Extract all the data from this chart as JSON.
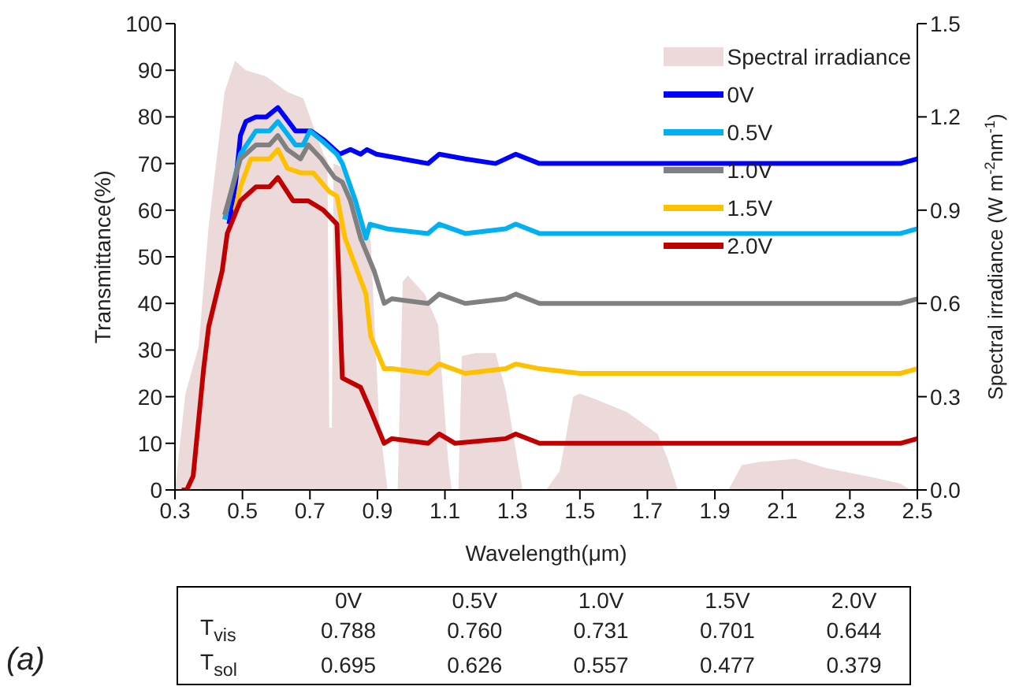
{
  "chart_data": {
    "type": "line",
    "xlabel": "Wavelength(μm)",
    "ylabel": "Transmittance(%)",
    "y2label": "Spectral irradiance (W m$^{-2}$nm$^{-1}$)",
    "xlim": [
      0.3,
      2.5
    ],
    "xticks": [
      0.3,
      0.5,
      0.7,
      0.9,
      1.1,
      1.3,
      1.5,
      1.7,
      1.9,
      2.1,
      2.3,
      2.5
    ],
    "ylim": [
      0,
      100
    ],
    "yticks": [
      0,
      10,
      20,
      30,
      40,
      50,
      60,
      70,
      80,
      90,
      100
    ],
    "y2lim": [
      0,
      1.5
    ],
    "y2ticks": [
      {
        "value": 0,
        "label": "0.0"
      },
      {
        "value": 0.3,
        "label": "0.3"
      },
      {
        "value": 0.6,
        "label": "0.6"
      },
      {
        "value": 0.9,
        "label": "0.9"
      },
      {
        "value": 1.2,
        "label": "1.2"
      },
      {
        "value": 1.5,
        "label": "1.5"
      }
    ],
    "grid": false,
    "legend": "top right",
    "marker": "none",
    "line_style": "solid",
    "series": [
      {
        "name": "Spectral irradiance",
        "type": "area",
        "axis": "y2",
        "color": "#ecd9d9",
        "x": [
          0.3,
          0.331,
          0.37,
          0.4,
          0.447,
          0.478,
          0.51,
          0.57,
          0.633,
          0.68,
          0.74,
          0.752,
          0.757,
          0.765,
          0.77,
          0.79,
          0.85,
          0.88,
          0.905,
          0.93,
          0.96,
          0.975,
          0.99,
          1.04,
          1.08,
          1.11,
          1.12,
          1.14,
          1.15,
          1.19,
          1.25,
          1.28,
          1.33,
          1.4,
          1.44,
          1.48,
          1.5,
          1.55,
          1.64,
          1.73,
          1.76,
          1.79,
          1.94,
          1.98,
          2.03,
          2.14,
          2.23,
          2.37,
          2.45,
          2.48,
          2.5
        ],
        "values": [
          0,
          0.31,
          0.46,
          0.85,
          1.28,
          1.38,
          1.35,
          1.33,
          1.28,
          1.26,
          1.08,
          1.06,
          0.2,
          0.2,
          1.05,
          1.04,
          0.9,
          0.8,
          0.22,
          0,
          0,
          0.67,
          0.69,
          0.63,
          0.53,
          0.09,
          0,
          0,
          0.43,
          0.44,
          0.44,
          0.32,
          0,
          0,
          0.06,
          0.3,
          0.31,
          0.29,
          0.25,
          0.18,
          0.1,
          0,
          0,
          0.08,
          0.09,
          0.1,
          0.07,
          0.04,
          0.02,
          0,
          0
        ]
      },
      {
        "name": "0V",
        "color": "#0000ff",
        "x": [
          0.46,
          0.48,
          0.494,
          0.51,
          0.54,
          0.571,
          0.605,
          0.626,
          0.657,
          0.68,
          0.703,
          0.742,
          0.788,
          0.82,
          0.85,
          0.869,
          0.897,
          0.974,
          1.05,
          1.083,
          1.16,
          1.25,
          1.31,
          1.38,
          1.5,
          2.0,
          2.45,
          2.5
        ],
        "values": [
          57,
          66,
          76,
          79,
          80,
          80,
          82,
          80,
          77,
          77,
          77,
          75,
          72,
          73,
          72,
          73,
          72,
          71,
          70,
          72,
          71,
          70,
          72,
          70,
          70,
          70,
          70,
          71
        ]
      },
      {
        "name": "0.5V",
        "color": "#00b0f0",
        "x": [
          0.447,
          0.494,
          0.54,
          0.58,
          0.605,
          0.626,
          0.657,
          0.68,
          0.7,
          0.734,
          0.78,
          0.796,
          0.835,
          0.866,
          0.878,
          0.928,
          1.05,
          1.083,
          1.16,
          1.28,
          1.31,
          1.38,
          1.5,
          2.0,
          2.45,
          2.5
        ],
        "values": [
          58,
          72,
          77,
          77,
          79,
          77,
          74,
          74,
          77,
          75,
          72,
          70,
          62,
          54,
          57,
          56,
          55,
          57,
          55,
          56,
          57,
          55,
          55,
          55,
          55,
          56
        ]
      },
      {
        "name": "1.0V",
        "color": "#808080",
        "x": [
          0.447,
          0.494,
          0.54,
          0.58,
          0.605,
          0.633,
          0.672,
          0.695,
          0.734,
          0.773,
          0.796,
          0.82,
          0.85,
          0.89,
          0.92,
          0.943,
          1.05,
          1.083,
          1.16,
          1.28,
          1.31,
          1.38,
          1.5,
          2.0,
          2.45,
          2.5
        ],
        "values": [
          59,
          71,
          74,
          74,
          76,
          73,
          71,
          74,
          71,
          67,
          66,
          62,
          54,
          47,
          40,
          41,
          40,
          42,
          40,
          41,
          42,
          40,
          40,
          40,
          40,
          41
        ]
      },
      {
        "name": "1.5V",
        "color": "#ffc000",
        "x": [
          0.478,
          0.494,
          0.525,
          0.58,
          0.605,
          0.633,
          0.672,
          0.71,
          0.757,
          0.78,
          0.804,
          0.835,
          0.866,
          0.88,
          0.92,
          0.943,
          1.05,
          1.083,
          1.16,
          1.28,
          1.31,
          1.38,
          1.5,
          2.0,
          2.45,
          2.5
        ],
        "values": [
          60,
          65,
          71,
          71,
          73,
          69,
          68,
          68,
          64,
          63,
          54,
          48,
          42,
          33,
          26,
          26,
          25,
          27,
          25,
          26,
          27,
          26,
          25,
          25,
          25,
          26
        ]
      },
      {
        "name": "2.0V",
        "color": "#c00000",
        "x": [
          0.32,
          0.335,
          0.354,
          0.385,
          0.4,
          0.44,
          0.455,
          0.494,
          0.54,
          0.58,
          0.605,
          0.65,
          0.695,
          0.74,
          0.78,
          0.796,
          0.85,
          0.88,
          0.92,
          0.943,
          1.05,
          1.083,
          1.13,
          1.28,
          1.31,
          1.38,
          1.5,
          2.0,
          2.45,
          2.5
        ],
        "values": [
          0,
          0,
          3,
          26,
          35,
          47,
          55,
          62,
          65,
          65,
          67,
          62,
          62,
          60,
          57,
          24,
          22,
          17,
          10,
          11,
          10,
          12,
          10,
          11,
          12,
          10,
          10,
          10,
          10,
          11
        ]
      }
    ],
    "annotations": [
      "\t0V\t0.5V\t1.0V\t1.5V\t2.0V",
      "T$_{vis}$\t0.788\t0.760\t0.731\t0.701\t0.644",
      "T$_{sol}$\t0.695\t0.626\t0.557\t0.477\t0.379",
      "(a)"
    ]
  }
}
